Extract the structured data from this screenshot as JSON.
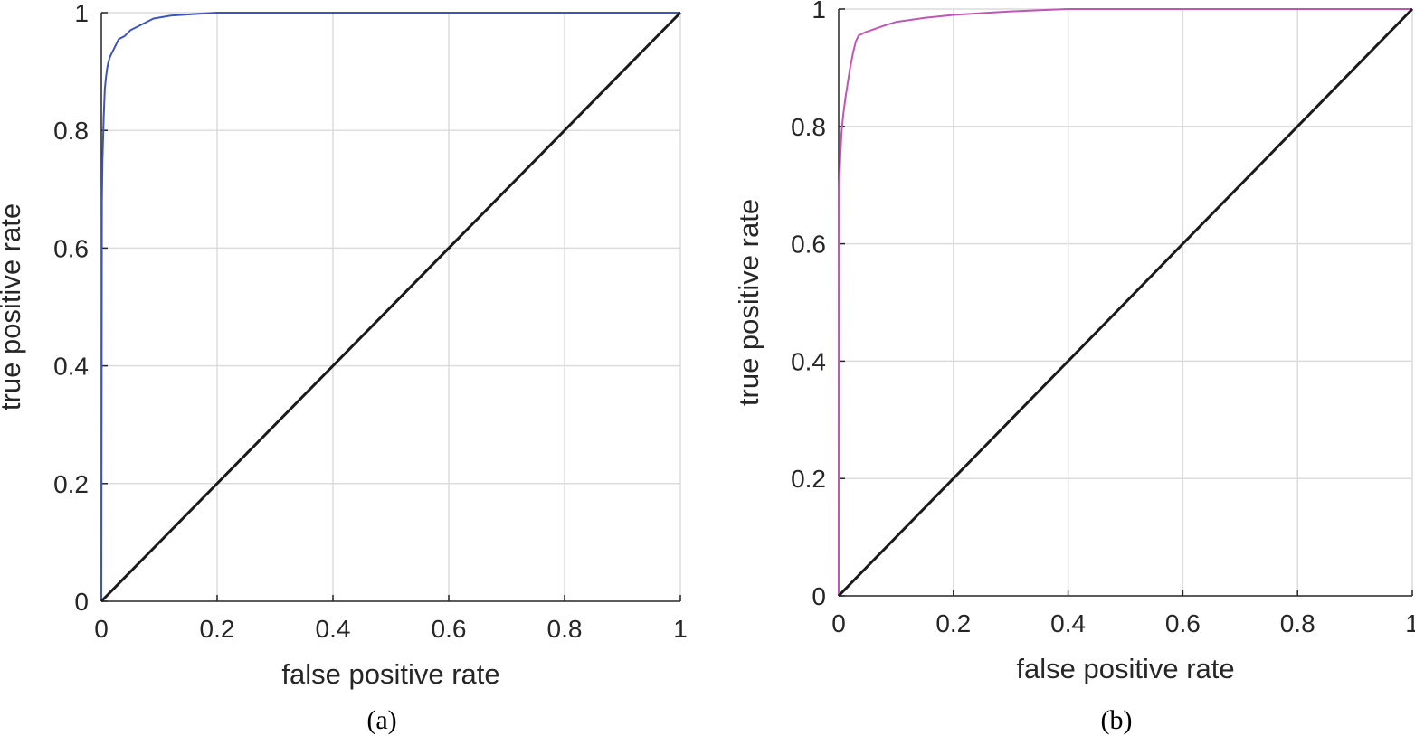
{
  "chart_data": [
    {
      "type": "line",
      "caption": "(a)",
      "xlabel": "false positive rate",
      "ylabel": "true positive rate",
      "xlim": [
        0,
        1
      ],
      "ylim": [
        0,
        1
      ],
      "grid": true,
      "xticks": [
        "0",
        "0.2",
        "0.4",
        "0.6",
        "0.8",
        "1"
      ],
      "yticks": [
        "0",
        "0.2",
        "0.4",
        "0.6",
        "0.8",
        "1"
      ],
      "colors": {
        "roc": "#3f55b5",
        "diagonal": "#1a1a1a"
      },
      "series": [
        {
          "x": [
            0,
            0.001,
            0.002,
            0.004,
            0.006,
            0.008,
            0.01,
            0.012,
            0.015,
            0.02,
            0.025,
            0.03,
            0.04,
            0.05,
            0.07,
            0.09,
            0.12,
            0.15,
            0.2,
            0.3,
            0.5,
            0.75,
            1.0
          ],
          "y": [
            0,
            0.68,
            0.75,
            0.82,
            0.87,
            0.89,
            0.905,
            0.915,
            0.925,
            0.935,
            0.945,
            0.955,
            0.96,
            0.97,
            0.98,
            0.99,
            0.995,
            0.997,
            1.0,
            1.0,
            1.0,
            1.0,
            1.0
          ]
        },
        {
          "x": [
            0,
            1
          ],
          "y": [
            0,
            1
          ]
        }
      ]
    },
    {
      "type": "line",
      "caption": "(b)",
      "xlabel": "false positive rate",
      "ylabel": "true positive rate",
      "xlim": [
        0,
        1
      ],
      "ylim": [
        0,
        1
      ],
      "grid": true,
      "xticks": [
        "0",
        "0.2",
        "0.4",
        "0.6",
        "0.8",
        "1"
      ],
      "yticks": [
        "0",
        "0.2",
        "0.4",
        "0.6",
        "0.8",
        "1"
      ],
      "colors": {
        "roc": "#c055b8",
        "diagonal": "#1a1a1a"
      },
      "series": [
        {
          "x": [
            0,
            0.001,
            0.003,
            0.005,
            0.008,
            0.012,
            0.016,
            0.02,
            0.025,
            0.03,
            0.035,
            0.045,
            0.06,
            0.08,
            0.1,
            0.15,
            0.2,
            0.25,
            0.3,
            0.4,
            0.6,
            0.8,
            1.0
          ],
          "y": [
            0,
            0.7,
            0.75,
            0.79,
            0.82,
            0.85,
            0.875,
            0.9,
            0.925,
            0.945,
            0.955,
            0.96,
            0.965,
            0.972,
            0.978,
            0.985,
            0.99,
            0.993,
            0.996,
            1.0,
            1.0,
            1.0,
            1.0
          ]
        },
        {
          "x": [
            0,
            1
          ],
          "y": [
            0,
            1
          ]
        }
      ]
    }
  ]
}
